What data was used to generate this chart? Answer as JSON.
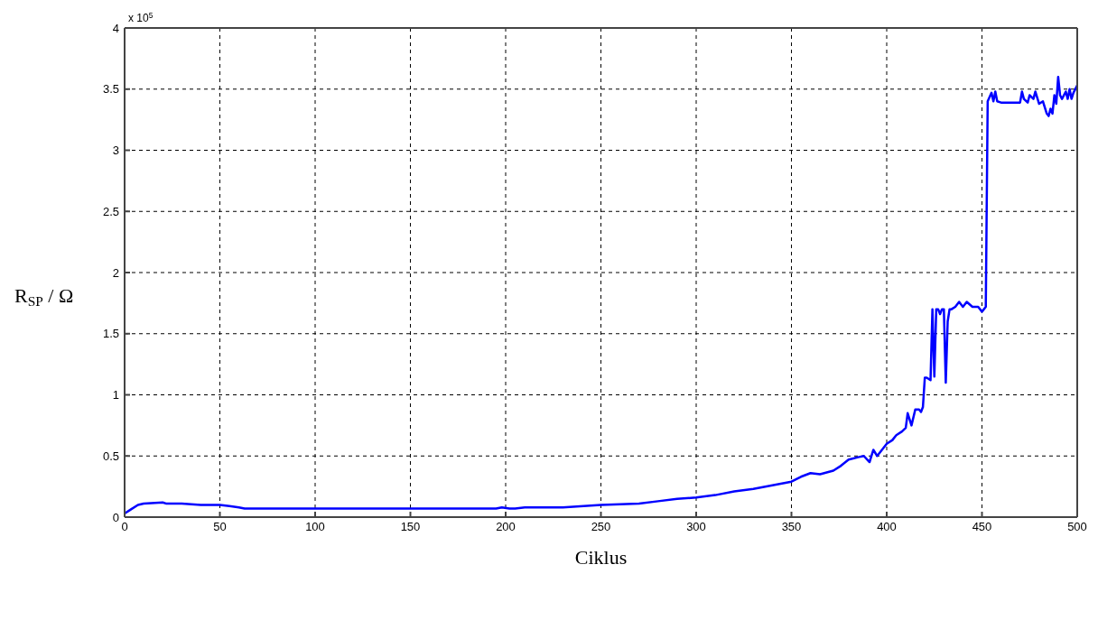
{
  "chart_data": {
    "type": "line",
    "xlabel": "Ciklus",
    "ylabel": "R$_{SP}$ / Ω",
    "annotations": [
      "x 10$^{5}$"
    ],
    "xlim": [
      0,
      500
    ],
    "xticks": [
      0,
      50,
      100,
      150,
      200,
      250,
      300,
      350,
      400,
      450,
      500
    ],
    "ylim": [
      0,
      4
    ],
    "yticks": [
      0,
      0.5,
      1,
      1.5,
      2,
      2.5,
      3,
      3.5,
      4
    ],
    "grid": true,
    "line_style": "solid",
    "marker": "none",
    "series": [
      {
        "color": "#0000ff",
        "x": [
          0,
          3,
          7,
          10,
          20,
          22,
          30,
          40,
          50,
          55,
          60,
          63,
          65,
          80,
          100,
          150,
          195,
          198,
          202,
          205,
          210,
          230,
          250,
          270,
          280,
          290,
          300,
          310,
          320,
          330,
          340,
          350,
          355,
          360,
          365,
          372,
          376,
          380,
          385,
          388,
          391,
          393,
          395,
          400,
          403,
          405,
          408,
          410,
          411,
          413,
          415,
          417,
          418,
          419,
          420,
          421,
          423,
          424,
          425,
          426,
          427,
          428,
          429,
          430,
          431,
          432,
          433,
          434,
          436,
          438,
          440,
          442,
          445,
          448,
          450,
          452,
          453,
          455,
          456,
          457,
          458,
          460,
          465,
          470,
          471,
          472,
          474,
          475,
          477,
          478,
          480,
          482,
          484,
          485,
          486,
          487,
          488,
          489,
          490,
          491,
          492,
          494,
          495,
          496,
          497,
          498,
          500
        ],
        "values": [
          0.03,
          0.06,
          0.1,
          0.11,
          0.12,
          0.11,
          0.11,
          0.1,
          0.1,
          0.09,
          0.08,
          0.07,
          0.07,
          0.07,
          0.07,
          0.07,
          0.07,
          0.08,
          0.07,
          0.07,
          0.08,
          0.08,
          0.1,
          0.11,
          0.13,
          0.15,
          0.16,
          0.18,
          0.21,
          0.23,
          0.26,
          0.29,
          0.33,
          0.36,
          0.35,
          0.38,
          0.42,
          0.47,
          0.49,
          0.5,
          0.45,
          0.55,
          0.5,
          0.6,
          0.63,
          0.67,
          0.7,
          0.73,
          0.85,
          0.75,
          0.88,
          0.88,
          0.86,
          0.9,
          1.14,
          1.14,
          1.12,
          1.7,
          1.15,
          1.7,
          1.7,
          1.66,
          1.7,
          1.7,
          1.1,
          1.6,
          1.7,
          1.7,
          1.72,
          1.76,
          1.72,
          1.76,
          1.72,
          1.72,
          1.68,
          1.72,
          3.4,
          3.47,
          3.4,
          3.48,
          3.4,
          3.39,
          3.39,
          3.39,
          3.48,
          3.42,
          3.39,
          3.45,
          3.42,
          3.48,
          3.38,
          3.4,
          3.3,
          3.28,
          3.34,
          3.3,
          3.45,
          3.38,
          3.6,
          3.45,
          3.42,
          3.48,
          3.42,
          3.5,
          3.42,
          3.47,
          3.53
        ]
      }
    ]
  }
}
